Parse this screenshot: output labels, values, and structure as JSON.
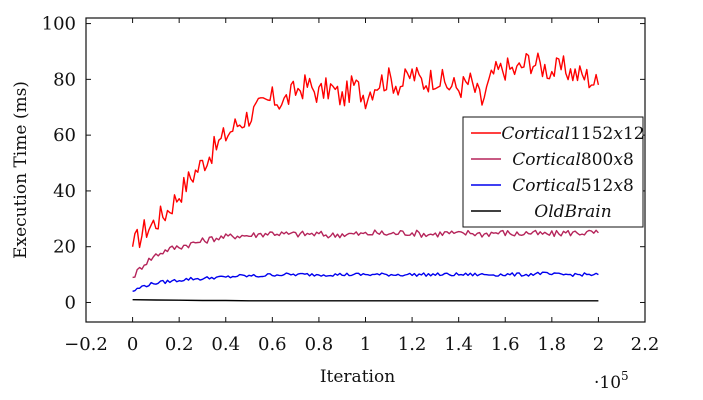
{
  "chart_data": {
    "type": "line",
    "xlabel": "Iteration",
    "ylabel": "Execution Time (ms)",
    "x_multiplier_label": "·10",
    "x_multiplier_exp": "5",
    "xlim": [
      -0.2,
      2.2
    ],
    "ylim": [
      -7,
      102
    ],
    "x_ticks": [
      -0.2,
      0,
      0.2,
      0.4,
      0.6,
      0.8,
      1,
      1.2,
      1.4,
      1.6,
      1.8,
      2,
      2.2
    ],
    "x_tick_labels": [
      "−0.2",
      "0",
      "0.2",
      "0.4",
      "0.6",
      "0.8",
      "1",
      "1.2",
      "1.4",
      "1.6",
      "1.8",
      "2",
      "2.2"
    ],
    "y_ticks": [
      0,
      20,
      40,
      60,
      80,
      100
    ],
    "y_tick_labels": [
      "0",
      "20",
      "40",
      "60",
      "80",
      "100"
    ],
    "grid": false,
    "legend_position": "right",
    "series": [
      {
        "name_italic": "Cortical",
        "name_rest": "1152x12",
        "color": "#ff0000",
        "x": [
          0,
          0.05,
          0.1,
          0.15,
          0.2,
          0.25,
          0.3,
          0.35,
          0.4,
          0.45,
          0.5,
          0.55,
          0.6,
          0.65,
          0.7,
          0.75,
          0.8,
          0.85,
          0.9,
          0.95,
          1.0,
          1.05,
          1.1,
          1.15,
          1.2,
          1.25,
          1.3,
          1.35,
          1.4,
          1.45,
          1.5,
          1.55,
          1.6,
          1.65,
          1.7,
          1.75,
          1.8,
          1.85,
          1.9,
          1.95,
          2.0
        ],
        "values": [
          20,
          26,
          29,
          33,
          39,
          45,
          50,
          55,
          60,
          64,
          67,
          70,
          73,
          72,
          76,
          78,
          75,
          77,
          73,
          78,
          74,
          79,
          80,
          78,
          82,
          79,
          81,
          78,
          77,
          79,
          72,
          82,
          84,
          83,
          87,
          85,
          83,
          84,
          82,
          81,
          78
        ]
      },
      {
        "name_italic": "Cortical",
        "name_rest": "800x8",
        "color": "#b5245a",
        "x": [
          0,
          0.05,
          0.1,
          0.15,
          0.2,
          0.25,
          0.3,
          0.35,
          0.4,
          0.45,
          0.5,
          0.55,
          0.6,
          0.65,
          0.7,
          0.75,
          0.8,
          0.85,
          0.9,
          0.95,
          1.0,
          1.05,
          1.1,
          1.15,
          1.2,
          1.25,
          1.3,
          1.35,
          1.4,
          1.45,
          1.5,
          1.55,
          1.6,
          1.65,
          1.7,
          1.75,
          1.8,
          1.85,
          1.9,
          1.95,
          2.0
        ],
        "values": [
          9,
          14,
          17,
          19,
          20,
          21,
          22,
          23,
          23.5,
          24,
          24,
          24.5,
          25,
          24.5,
          24.5,
          24.5,
          24.5,
          24,
          24.5,
          24.5,
          24.5,
          25,
          24.5,
          25,
          25,
          24.5,
          24.5,
          25,
          24.5,
          25,
          24.5,
          25,
          25,
          24.5,
          25,
          24.5,
          24.5,
          25,
          25,
          25,
          25
        ]
      },
      {
        "name_italic": "Cortical",
        "name_rest": "512x8",
        "color": "#0000ee",
        "x": [
          0,
          0.05,
          0.1,
          0.15,
          0.2,
          0.25,
          0.3,
          0.35,
          0.4,
          0.45,
          0.5,
          0.55,
          0.6,
          0.65,
          0.7,
          0.75,
          0.8,
          0.85,
          0.9,
          0.95,
          1.0,
          1.05,
          1.1,
          1.15,
          1.2,
          1.25,
          1.3,
          1.35,
          1.4,
          1.45,
          1.5,
          1.55,
          1.6,
          1.65,
          1.7,
          1.75,
          1.8,
          1.85,
          1.9,
          1.95,
          2.0
        ],
        "values": [
          4,
          6,
          7,
          7.5,
          8,
          8.5,
          8.5,
          9,
          9,
          9.5,
          9.5,
          9.5,
          10,
          10,
          10,
          10,
          10,
          10,
          10,
          10,
          10,
          10,
          10,
          10,
          10,
          10,
          10,
          10,
          10,
          10,
          10,
          10,
          10,
          10,
          10,
          10.5,
          10,
          10,
          10,
          10,
          10
        ]
      },
      {
        "name_italic": "OldBrain",
        "name_rest": "",
        "color": "#000000",
        "x": [
          0,
          0.1,
          0.2,
          0.3,
          0.4,
          0.5,
          0.6,
          0.7,
          0.8,
          0.9,
          1.0,
          1.2,
          1.4,
          1.6,
          1.8,
          2.0
        ],
        "values": [
          1,
          0.9,
          0.8,
          0.7,
          0.7,
          0.6,
          0.6,
          0.6,
          0.6,
          0.6,
          0.6,
          0.6,
          0.6,
          0.6,
          0.6,
          0.6
        ]
      }
    ]
  }
}
